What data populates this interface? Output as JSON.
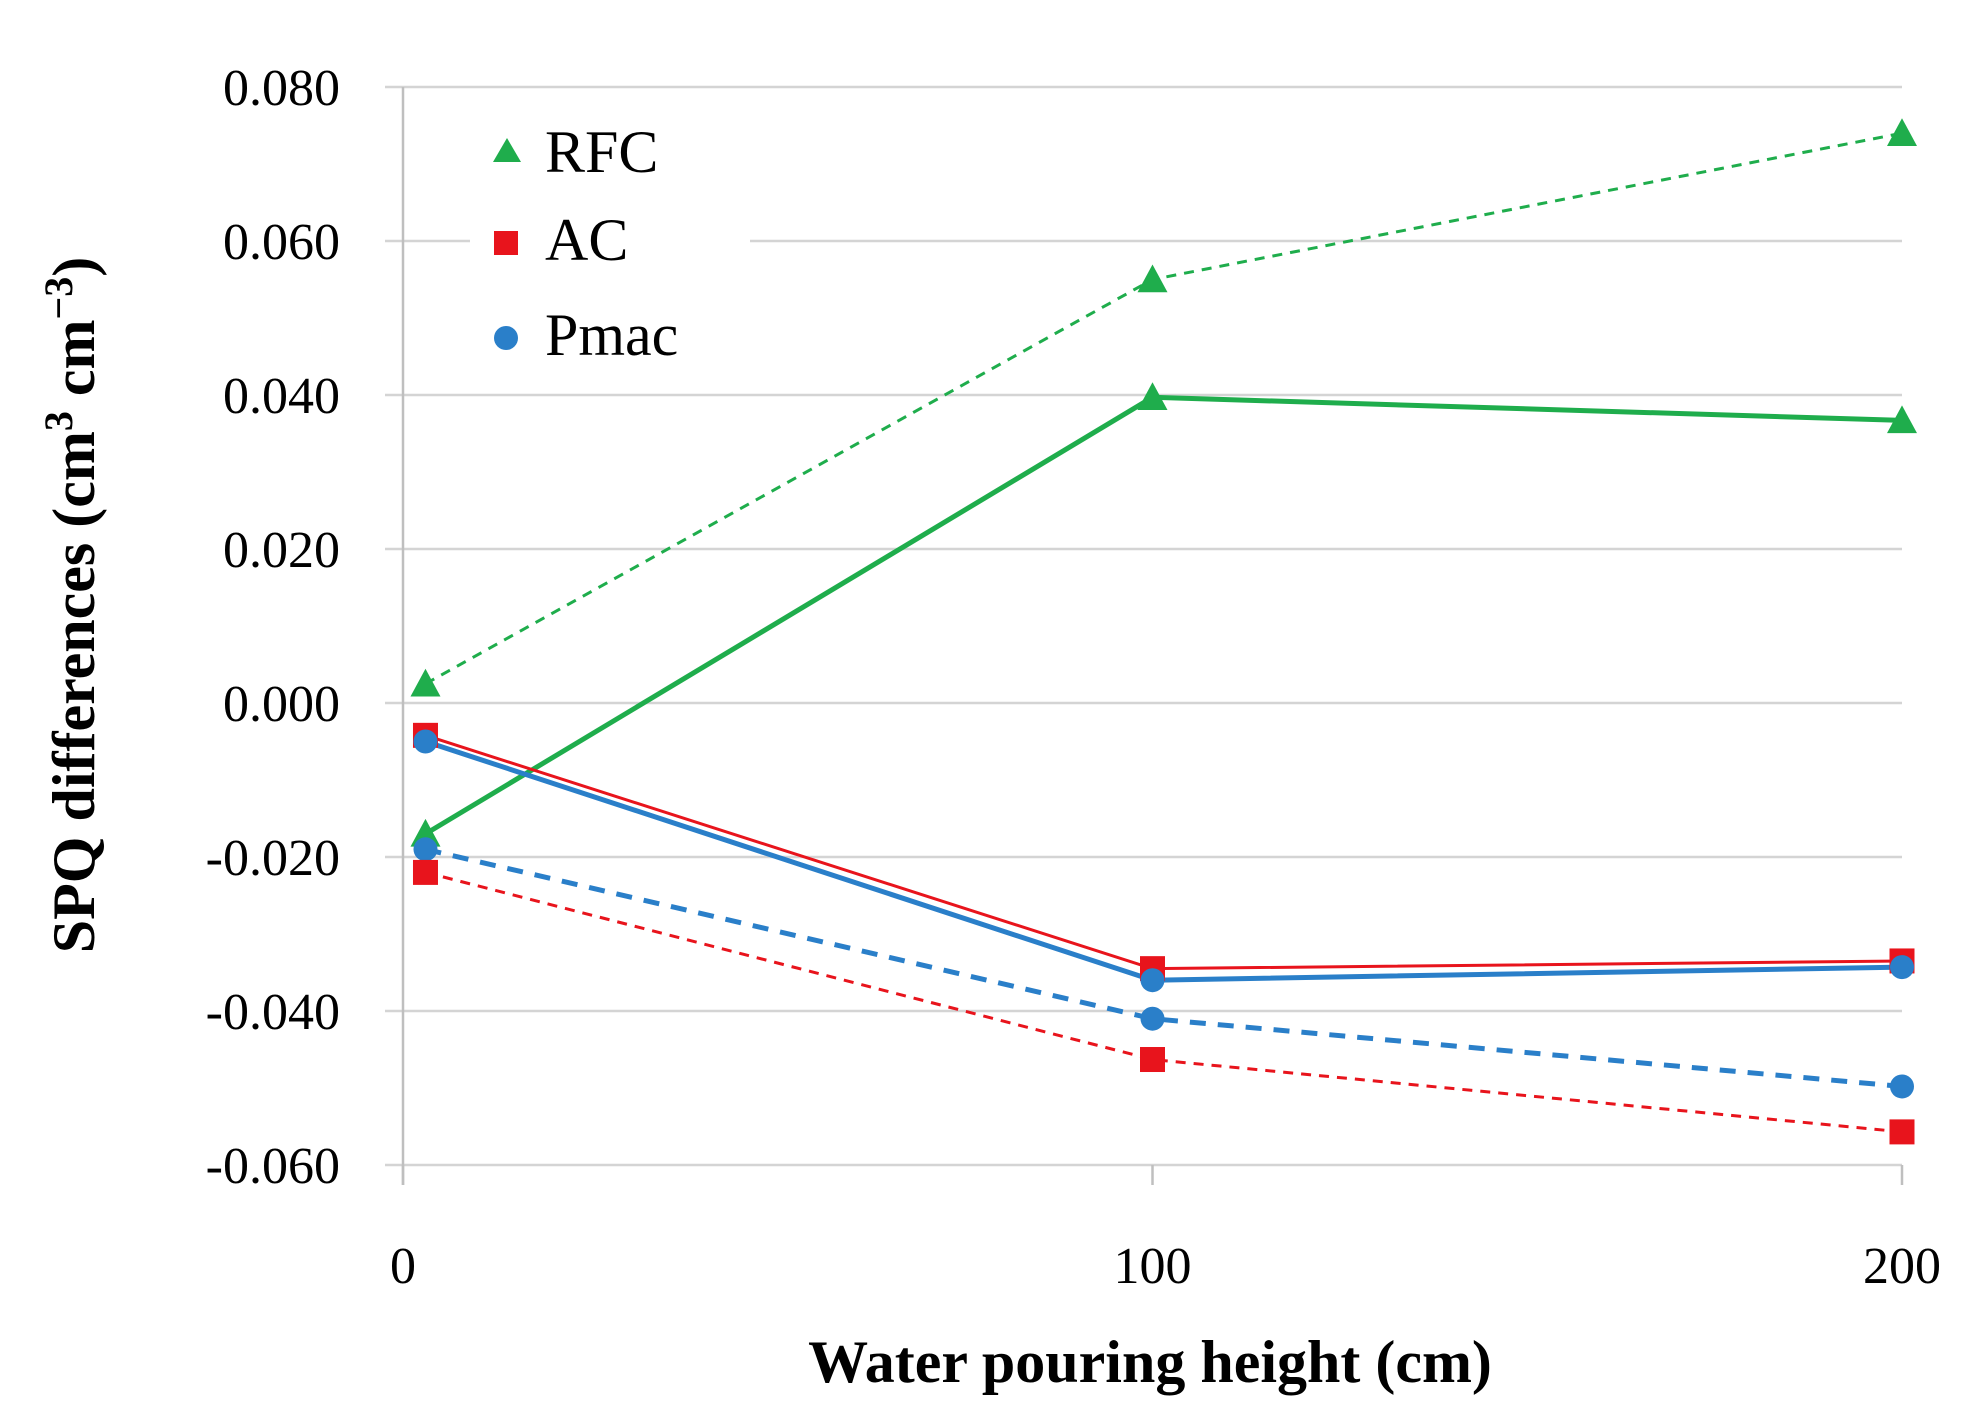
{
  "chart_data": {
    "type": "line",
    "title": "",
    "xlabel": "Water pouring height (cm)",
    "ylabel_main": "SPQ differences (cm",
    "ylabel_sup1": "3",
    "ylabel_mid": " cm",
    "ylabel_sup2": "−3",
    "ylabel_end": ")",
    "xlim": [
      0,
      200
    ],
    "ylim": [
      -0.06,
      0.08
    ],
    "x_ticks": [
      0,
      100,
      200
    ],
    "x_tick_labels": [
      "0",
      "100",
      "200"
    ],
    "y_ticks": [
      0.08,
      0.06,
      0.04,
      0.02,
      0.0,
      -0.02,
      -0.04,
      -0.06
    ],
    "y_tick_labels": [
      "0.080",
      "0.060",
      "0.040",
      "0.020",
      "0.000",
      "-0.020",
      "-0.040",
      "-0.060"
    ],
    "grid": true,
    "legend": {
      "placement": "top-left",
      "entries": [
        {
          "label": "RFC",
          "marker": "triangle",
          "color": "#1fad4c"
        },
        {
          "label": "AC",
          "marker": "square",
          "color": "#e8141c"
        },
        {
          "label": "Pmac",
          "marker": "circle",
          "color": "#2a7fc9"
        }
      ]
    },
    "series": [
      {
        "name": "RFC",
        "style": "dashed",
        "marker": "triangle",
        "color": "#1fad4c",
        "width": "thin",
        "x": [
          3,
          100,
          200
        ],
        "values": [
          0.0025,
          0.055,
          0.074
        ]
      },
      {
        "name": "RFC",
        "style": "solid",
        "marker": "triangle",
        "color": "#1fad4c",
        "width": "thick",
        "x": [
          3,
          100,
          200
        ],
        "values": [
          -0.017,
          0.0397,
          0.0367
        ]
      },
      {
        "name": "AC",
        "style": "solid",
        "marker": "square",
        "color": "#e8141c",
        "width": "thin",
        "x": [
          3,
          100,
          200
        ],
        "values": [
          -0.0042,
          -0.0345,
          -0.0335
        ]
      },
      {
        "name": "Pmac",
        "style": "solid",
        "marker": "circle",
        "color": "#2a7fc9",
        "width": "thick",
        "x": [
          3,
          100,
          200
        ],
        "values": [
          -0.005,
          -0.036,
          -0.0343
        ]
      },
      {
        "name": "Pmac",
        "style": "dashed",
        "marker": "circle",
        "color": "#2a7fc9",
        "width": "thick",
        "x": [
          3,
          100,
          200
        ],
        "values": [
          -0.019,
          -0.041,
          -0.0498
        ]
      },
      {
        "name": "AC",
        "style": "dashed",
        "marker": "square",
        "color": "#e8141c",
        "width": "thin",
        "x": [
          3,
          100,
          200
        ],
        "values": [
          -0.022,
          -0.0463,
          -0.0557
        ]
      }
    ]
  }
}
